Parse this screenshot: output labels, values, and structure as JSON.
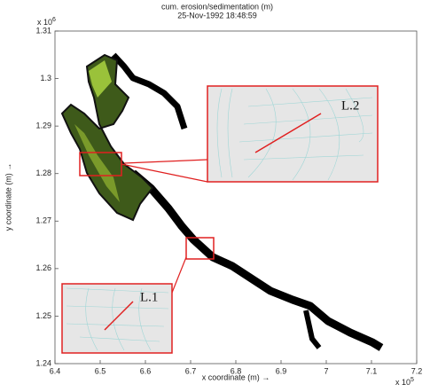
{
  "chart_data": {
    "type": "mesh",
    "title": "cum. erosion/sedimentation (m)",
    "subtitle": "25-Nov-1992 18:48:59",
    "x_label": "x coordinate (m) →",
    "y_label": "y coordinate (m) →",
    "x_exponent": {
      "base": "x 10",
      "power": 5
    },
    "y_exponent": {
      "base": "x 10",
      "power": 6
    },
    "xlim": [
      6.4,
      7.2
    ],
    "ylim": [
      1.24,
      1.31
    ],
    "xticks": [
      6.4,
      6.5,
      6.6,
      6.7,
      6.8,
      6.9,
      7,
      7.1,
      7.2
    ],
    "yticks": [
      1.24,
      1.25,
      1.26,
      1.27,
      1.28,
      1.29,
      1.3,
      1.31
    ],
    "annotations": [
      "L.1",
      "L.2"
    ]
  }
}
